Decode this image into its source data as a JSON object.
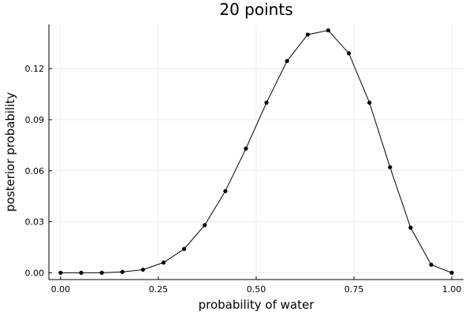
{
  "chart_data": {
    "type": "line",
    "title": "20 points",
    "xlabel": "probability of water",
    "ylabel": "posterior probability",
    "xlim": [
      -0.03,
      1.03
    ],
    "ylim": [
      -0.004,
      0.146
    ],
    "xticks": [
      0,
      0.25,
      0.5,
      0.75,
      1
    ],
    "xtick_labels": [
      "0.00",
      "0.25",
      "0.50",
      "0.75",
      "1.00"
    ],
    "yticks": [
      0,
      0.03,
      0.06,
      0.09,
      0.12
    ],
    "ytick_labels": [
      "0.00",
      "0.03",
      "0.06",
      "0.09",
      "0.12"
    ],
    "grid": true,
    "legend": "none",
    "series_color": "#000000",
    "x": [
      0.0,
      0.0526,
      0.1053,
      0.1579,
      0.2105,
      0.2632,
      0.3158,
      0.3684,
      0.4211,
      0.4737,
      0.5263,
      0.5789,
      0.6316,
      0.6842,
      0.7368,
      0.7895,
      0.8421,
      0.8947,
      0.9474,
      1.0
    ],
    "y": [
      0.0,
      0.0,
      0.0,
      0.0005,
      0.0018,
      0.006,
      0.014,
      0.028,
      0.048,
      0.073,
      0.1,
      0.1245,
      0.14,
      0.1425,
      0.129,
      0.1,
      0.062,
      0.0265,
      0.0047,
      0.0
    ]
  }
}
